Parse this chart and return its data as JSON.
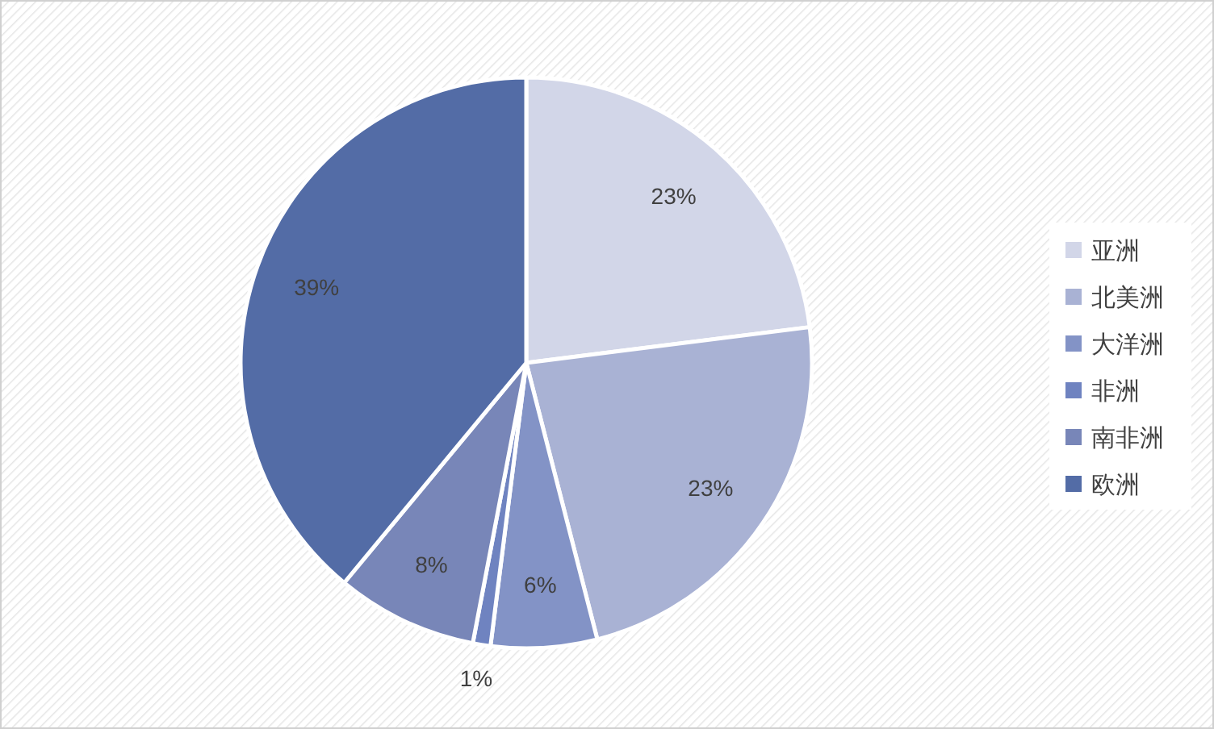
{
  "chart_data": {
    "type": "pie",
    "categories": [
      "亚洲",
      "北美洲",
      "大洋洲",
      "非洲",
      "南非洲",
      "欧洲"
    ],
    "values": [
      23,
      23,
      6,
      1,
      8,
      39
    ],
    "value_labels": [
      "23%",
      "23%",
      "6%",
      "1%",
      "8%",
      "39%"
    ],
    "colors": [
      "#d2d6e8",
      "#a9b2d4",
      "#8393c6",
      "#6f83c0",
      "#7886b8",
      "#536ca6"
    ],
    "legend": "right"
  }
}
